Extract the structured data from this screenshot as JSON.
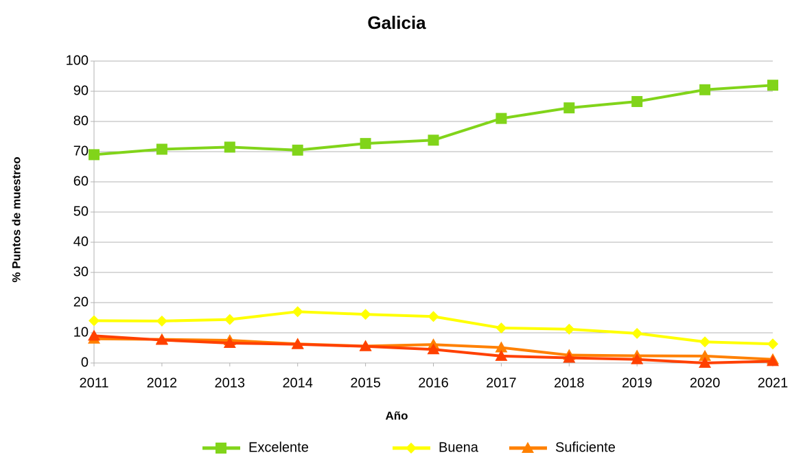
{
  "chart_data": {
    "type": "line",
    "title": "Galicia",
    "x_label": "Año",
    "y_label": "% Puntos de muestreo",
    "categories": [
      "2011",
      "2012",
      "2013",
      "2014",
      "2015",
      "2016",
      "2017",
      "2018",
      "2019",
      "2020",
      "2021"
    ],
    "series": [
      {
        "name": "Excelente",
        "color": "#81d41a",
        "marker": "square",
        "values": [
          69,
          70.8,
          71.5,
          70.5,
          72.7,
          73.8,
          81,
          84.5,
          86.6,
          90.5,
          92
        ]
      },
      {
        "name": "Buena",
        "color": "#ffff00",
        "marker": "diamond",
        "values": [
          14,
          13.9,
          14.4,
          17,
          16.1,
          15.4,
          11.6,
          11.2,
          9.8,
          7,
          6.3
        ]
      },
      {
        "name": "Suficiente",
        "color": "#ff8000",
        "marker": "triangle",
        "values": [
          8,
          7.8,
          7.5,
          6.3,
          5.6,
          6.1,
          5.1,
          2.6,
          2.4,
          2.3,
          1.2
        ]
      },
      {
        "color": "#ff4000",
        "marker": "triangle",
        "values": [
          9,
          7.6,
          6.6,
          6.2,
          5.5,
          4.5,
          2.3,
          1.7,
          1.2,
          0,
          0.6
        ]
      }
    ],
    "ylim": [
      0,
      100
    ],
    "yticks": [
      0,
      10,
      20,
      30,
      40,
      50,
      60,
      70,
      80,
      90,
      100
    ],
    "grid": true,
    "legend": "bottom"
  }
}
